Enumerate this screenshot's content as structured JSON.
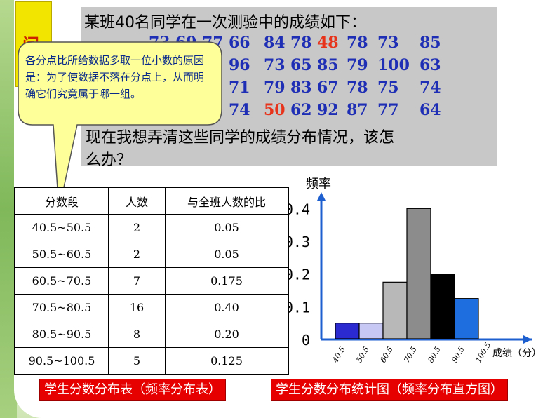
{
  "question": {
    "line1": "某班40名同学在一次测验中的成绩如下：",
    "line2": "现在我想弄清这些同学的成绩分布情况，该怎",
    "line3": "么办？",
    "tag_char": "问",
    "scores": [
      [
        "73",
        "69",
        "77",
        "66",
        "84",
        "78",
        "48",
        "78",
        "73",
        "85"
      ],
      [
        "",
        "",
        "",
        "96",
        "73",
        "65",
        "85",
        "79",
        "100",
        "63"
      ],
      [
        "",
        "",
        "",
        "71",
        "79",
        "83",
        "67",
        "78",
        "75",
        "74"
      ],
      [
        "",
        "",
        "",
        "74",
        "50",
        "62",
        "92",
        "87",
        "77",
        "64"
      ]
    ]
  },
  "callout": {
    "text": "各分点比所给数据多取一位小数的原因是：为了使数据不落在分点上，从而明确它们究竟属于哪一组。"
  },
  "table": {
    "headers": [
      "分数段",
      "人数",
      "与全班人数的比"
    ],
    "rows": [
      [
        "40.5~50.5",
        "2",
        "0.05"
      ],
      [
        "50.5~60.5",
        "2",
        "0.05"
      ],
      [
        "60.5~70.5",
        "7",
        "0.175"
      ],
      [
        "70.5~80.5",
        "16",
        "0.40"
      ],
      [
        "80.5~90.5",
        "8",
        "0.20"
      ],
      [
        "90.5~100.5",
        "5",
        "0.125"
      ]
    ]
  },
  "captions": {
    "left": "学生分数分布表（频率分布表）",
    "right": "学生分数分布统计图（频率分布直方图）"
  },
  "colors": {
    "score_blue": "#1f2fb5",
    "highlight_red": "#e8331b",
    "caption_bg": "#e60000"
  },
  "chart_data": {
    "type": "bar",
    "ylabel": "频率",
    "xlabel": "成绩（分）",
    "x_ticks": [
      "40.5",
      "50.5",
      "60.5",
      "70.5",
      "80.5",
      "90.5",
      "100.5"
    ],
    "y_ticks": [
      "0",
      "0.1",
      "0.2",
      "0.3",
      "0.4"
    ],
    "ylim": [
      0,
      0.45
    ],
    "bins": [
      {
        "from": 40.5,
        "to": 50.5,
        "value": 0.05,
        "color": "#2a2ad0"
      },
      {
        "from": 50.5,
        "to": 60.5,
        "value": 0.05,
        "color": "#c8c8f4"
      },
      {
        "from": 60.5,
        "to": 70.5,
        "value": 0.175,
        "color": "#b8b8b8"
      },
      {
        "from": 70.5,
        "to": 80.5,
        "value": 0.4,
        "color": "#8c8c8c"
      },
      {
        "from": 80.5,
        "to": 90.5,
        "value": 0.2,
        "color": "#000000"
      },
      {
        "from": 90.5,
        "to": 100.5,
        "value": 0.125,
        "color": "#1e6ee0"
      }
    ]
  }
}
